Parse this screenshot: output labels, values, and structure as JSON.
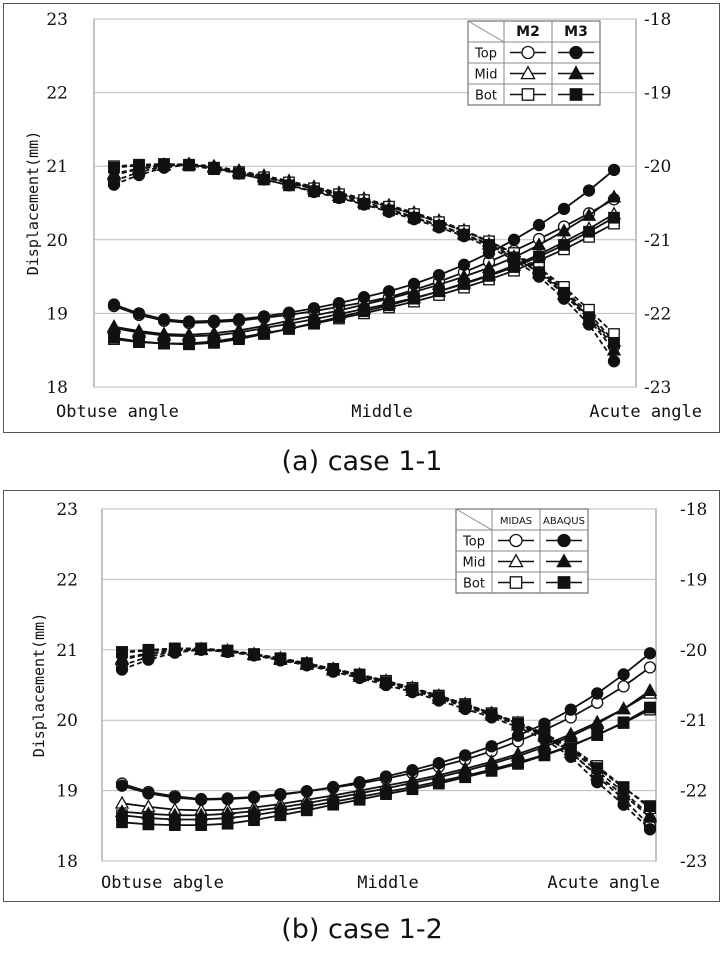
{
  "chart_data": [
    {
      "type": "line",
      "caption": "(a) case 1-1",
      "ylabel": "Displacement(mm)",
      "ylim_left": [
        18,
        23
      ],
      "ylim_right": [
        -23,
        -18
      ],
      "yticks_left": [
        "23",
        "22",
        "21",
        "20",
        "19",
        "18"
      ],
      "yticks_right": [
        "-18",
        "-19",
        "-20",
        "-21",
        "-22",
        "-23"
      ],
      "x_labels": [
        "Obtuse angle",
        "Middle",
        "Acute angle"
      ],
      "legend": {
        "rows": [
          "Top",
          "Mid",
          "Bot"
        ],
        "cols": [
          "M2",
          "M3"
        ],
        "header_style": "bold"
      },
      "x_count": 21,
      "series": [
        {
          "name": "M2 Top",
          "axis": "left",
          "marker": "circle-open",
          "values": [
            19.1,
            18.98,
            18.9,
            18.87,
            18.88,
            18.9,
            18.94,
            18.98,
            19.03,
            19.09,
            19.15,
            19.22,
            19.32,
            19.43,
            19.56,
            19.7,
            19.85,
            20.01,
            20.18,
            20.36,
            20.55
          ]
        },
        {
          "name": "M2 Mid",
          "axis": "left",
          "marker": "triangle-open",
          "values": [
            18.8,
            18.74,
            18.7,
            18.69,
            18.7,
            18.74,
            18.8,
            18.86,
            18.92,
            18.99,
            19.06,
            19.13,
            19.21,
            19.3,
            19.41,
            19.52,
            19.65,
            19.8,
            19.97,
            20.15,
            20.35
          ]
        },
        {
          "name": "M2 Bot",
          "axis": "left",
          "marker": "square-open",
          "values": [
            18.65,
            18.61,
            18.59,
            18.59,
            18.62,
            18.67,
            18.73,
            18.79,
            18.86,
            18.93,
            19.0,
            19.08,
            19.16,
            19.25,
            19.35,
            19.46,
            19.58,
            19.72,
            19.87,
            20.04,
            20.22
          ]
        },
        {
          "name": "M3 Top",
          "axis": "left",
          "marker": "circle-filled",
          "values": [
            19.12,
            19.0,
            18.92,
            18.89,
            18.9,
            18.92,
            18.96,
            19.01,
            19.07,
            19.14,
            19.22,
            19.3,
            19.4,
            19.52,
            19.66,
            19.82,
            20.0,
            20.2,
            20.42,
            20.67,
            20.95
          ]
        },
        {
          "name": "M3 Mid",
          "axis": "left",
          "marker": "triangle-filled",
          "values": [
            18.82,
            18.76,
            18.72,
            18.71,
            18.73,
            18.77,
            18.83,
            18.9,
            18.97,
            19.04,
            19.12,
            19.2,
            19.29,
            19.39,
            19.5,
            19.62,
            19.76,
            19.93,
            20.12,
            20.33,
            20.58
          ]
        },
        {
          "name": "M3 Bot",
          "axis": "left",
          "marker": "square-filled",
          "values": [
            18.67,
            18.62,
            18.59,
            18.58,
            18.6,
            18.65,
            18.72,
            18.79,
            18.87,
            18.95,
            19.03,
            19.11,
            19.2,
            19.3,
            19.4,
            19.51,
            19.63,
            19.77,
            19.93,
            20.11,
            20.3
          ]
        },
        {
          "name": "M2 Top (right)",
          "axis": "right",
          "marker": "circle-open",
          "values": [
            -20.2,
            -20.08,
            -20.0,
            -19.98,
            -20.02,
            -20.08,
            -20.15,
            -20.22,
            -20.3,
            -20.38,
            -20.46,
            -20.55,
            -20.65,
            -20.76,
            -20.88,
            -21.03,
            -21.2,
            -21.42,
            -21.7,
            -22.05,
            -22.45
          ]
        },
        {
          "name": "M2 Mid (right)",
          "axis": "right",
          "marker": "triangle-open",
          "values": [
            -20.1,
            -20.03,
            -19.98,
            -19.97,
            -20.0,
            -20.06,
            -20.13,
            -20.2,
            -20.28,
            -20.36,
            -20.44,
            -20.53,
            -20.63,
            -20.74,
            -20.87,
            -21.02,
            -21.19,
            -21.4,
            -21.68,
            -22.0,
            -22.38
          ]
        },
        {
          "name": "M2 Bot (right)",
          "axis": "right",
          "marker": "square-open",
          "values": [
            -20.0,
            -19.98,
            -19.97,
            -19.98,
            -20.02,
            -20.08,
            -20.15,
            -20.22,
            -20.3,
            -20.38,
            -20.46,
            -20.55,
            -20.65,
            -20.76,
            -20.88,
            -21.02,
            -21.18,
            -21.38,
            -21.64,
            -21.95,
            -22.28
          ]
        },
        {
          "name": "M3 Top (right)",
          "axis": "right",
          "marker": "circle-filled",
          "values": [
            -20.25,
            -20.12,
            -20.02,
            -19.98,
            -20.02,
            -20.1,
            -20.18,
            -20.26,
            -20.35,
            -20.43,
            -20.52,
            -20.62,
            -20.72,
            -20.83,
            -20.95,
            -21.1,
            -21.27,
            -21.5,
            -21.8,
            -22.15,
            -22.65
          ]
        },
        {
          "name": "M3 Mid (right)",
          "axis": "right",
          "marker": "triangle-filled",
          "values": [
            -20.12,
            -20.04,
            -19.99,
            -19.98,
            -20.02,
            -20.08,
            -20.15,
            -20.23,
            -20.31,
            -20.4,
            -20.49,
            -20.58,
            -20.69,
            -20.8,
            -20.92,
            -21.06,
            -21.23,
            -21.45,
            -21.74,
            -22.08,
            -22.5
          ]
        },
        {
          "name": "M3 Bot (right)",
          "axis": "right",
          "marker": "square-filled",
          "values": [
            -20.02,
            -19.99,
            -19.98,
            -19.99,
            -20.04,
            -20.1,
            -20.18,
            -20.26,
            -20.34,
            -20.42,
            -20.51,
            -20.6,
            -20.7,
            -20.81,
            -20.93,
            -21.07,
            -21.24,
            -21.44,
            -21.72,
            -22.05,
            -22.4
          ]
        }
      ]
    },
    {
      "type": "line",
      "caption": "(b) case 1-2",
      "ylabel": "Displacement(mm)",
      "ylim_left": [
        18,
        23
      ],
      "ylim_right": [
        -23,
        -18
      ],
      "yticks_left": [
        "23",
        "22",
        "21",
        "20",
        "19",
        "18"
      ],
      "yticks_right": [
        "-18",
        "-19",
        "-20",
        "-21",
        "-22",
        "-23"
      ],
      "x_labels": [
        "Obtuse abgle",
        "Middle",
        "Acute angle"
      ],
      "legend": {
        "rows": [
          "Top",
          "Mid",
          "Bot"
        ],
        "cols": [
          "MIDAS",
          "ABAQUS"
        ],
        "header_style": "small"
      },
      "x_count": 21,
      "series": [
        {
          "name": "MIDAS Top",
          "axis": "left",
          "marker": "circle-open",
          "values": [
            19.1,
            18.98,
            18.92,
            18.88,
            18.89,
            18.91,
            18.95,
            18.99,
            19.04,
            19.1,
            19.17,
            19.25,
            19.34,
            19.44,
            19.56,
            19.7,
            19.86,
            20.04,
            20.25,
            20.48,
            20.75
          ]
        },
        {
          "name": "MIDAS Mid",
          "axis": "left",
          "marker": "triangle-open",
          "values": [
            18.82,
            18.77,
            18.73,
            18.72,
            18.73,
            18.76,
            18.81,
            18.87,
            18.93,
            19.0,
            19.07,
            19.14,
            19.22,
            19.31,
            19.41,
            19.52,
            19.65,
            19.8,
            19.97,
            20.16,
            20.38
          ]
        },
        {
          "name": "MIDAS Bot",
          "axis": "left",
          "marker": "square-open",
          "values": [
            18.65,
            18.61,
            18.59,
            18.59,
            18.61,
            18.65,
            18.71,
            18.77,
            18.84,
            18.91,
            18.98,
            19.05,
            19.13,
            19.21,
            19.3,
            19.4,
            19.51,
            19.64,
            19.79,
            19.96,
            20.15
          ]
        },
        {
          "name": "ABAQUS Top",
          "axis": "left",
          "marker": "circle-filled",
          "values": [
            19.07,
            18.96,
            18.9,
            18.87,
            18.88,
            18.9,
            18.94,
            18.99,
            19.05,
            19.12,
            19.2,
            19.29,
            19.39,
            19.5,
            19.63,
            19.78,
            19.95,
            20.15,
            20.38,
            20.65,
            20.95
          ]
        },
        {
          "name": "ABAQUS Mid",
          "axis": "left",
          "marker": "triangle-filled",
          "values": [
            18.7,
            18.67,
            18.65,
            18.65,
            18.67,
            18.71,
            18.76,
            18.82,
            18.89,
            18.96,
            19.03,
            19.11,
            19.19,
            19.28,
            19.38,
            19.49,
            19.62,
            19.77,
            19.95,
            20.16,
            20.42
          ]
        },
        {
          "name": "ABAQUS Bot",
          "axis": "left",
          "marker": "square-filled",
          "values": [
            18.55,
            18.52,
            18.51,
            18.51,
            18.53,
            18.58,
            18.65,
            18.72,
            18.8,
            18.87,
            18.95,
            19.02,
            19.1,
            19.19,
            19.28,
            19.38,
            19.5,
            19.63,
            19.79,
            19.97,
            20.18
          ]
        },
        {
          "name": "MIDAS Top (right)",
          "axis": "right",
          "marker": "circle-open",
          "values": [
            -20.22,
            -20.1,
            -20.02,
            -19.99,
            -20.02,
            -20.07,
            -20.13,
            -20.2,
            -20.28,
            -20.36,
            -20.45,
            -20.55,
            -20.66,
            -20.78,
            -20.9,
            -21.05,
            -21.22,
            -21.45,
            -21.8,
            -22.12,
            -22.5
          ]
        },
        {
          "name": "MIDAS Mid (right)",
          "axis": "right",
          "marker": "triangle-open",
          "values": [
            -20.12,
            -20.05,
            -20.0,
            -19.99,
            -20.01,
            -20.06,
            -20.12,
            -20.19,
            -20.27,
            -20.35,
            -20.44,
            -20.54,
            -20.65,
            -20.77,
            -20.9,
            -21.04,
            -21.2,
            -21.42,
            -21.72,
            -22.02,
            -22.35
          ]
        },
        {
          "name": "MIDAS Bot (right)",
          "axis": "right",
          "marker": "square-open",
          "values": [
            -20.03,
            -20.0,
            -19.98,
            -19.98,
            -20.01,
            -20.06,
            -20.12,
            -20.19,
            -20.27,
            -20.35,
            -20.44,
            -20.54,
            -20.65,
            -20.77,
            -20.9,
            -21.03,
            -21.19,
            -21.38,
            -21.65,
            -21.95,
            -22.25
          ]
        },
        {
          "name": "ABAQUS Top (right)",
          "axis": "right",
          "marker": "circle-filled",
          "values": [
            -20.28,
            -20.14,
            -20.04,
            -20.0,
            -20.03,
            -20.08,
            -20.15,
            -20.22,
            -20.31,
            -20.4,
            -20.5,
            -20.6,
            -20.72,
            -20.84,
            -20.96,
            -21.1,
            -21.27,
            -21.52,
            -21.88,
            -22.2,
            -22.55
          ]
        },
        {
          "name": "ABAQUS Mid (right)",
          "axis": "right",
          "marker": "triangle-filled",
          "values": [
            -20.14,
            -20.06,
            -20.01,
            -20.0,
            -20.02,
            -20.07,
            -20.14,
            -20.21,
            -20.29,
            -20.38,
            -20.47,
            -20.58,
            -20.69,
            -20.81,
            -20.93,
            -21.07,
            -21.23,
            -21.46,
            -21.78,
            -22.06,
            -22.38
          ]
        },
        {
          "name": "ABAQUS Bot (right)",
          "axis": "right",
          "marker": "square-filled",
          "values": [
            -20.04,
            -20.01,
            -19.99,
            -19.99,
            -20.02,
            -20.07,
            -20.13,
            -20.2,
            -20.28,
            -20.36,
            -20.46,
            -20.56,
            -20.67,
            -20.79,
            -20.92,
            -21.05,
            -21.2,
            -21.4,
            -21.68,
            -21.96,
            -22.22
          ]
        }
      ]
    }
  ]
}
